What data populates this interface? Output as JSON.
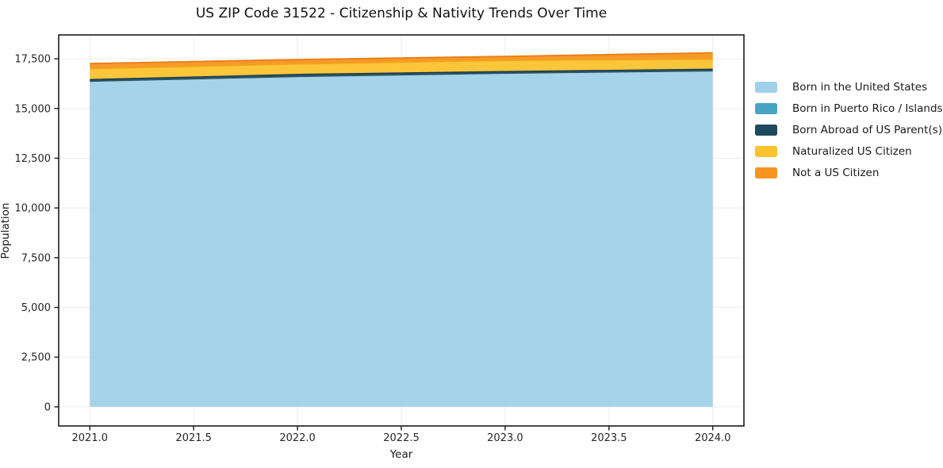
{
  "chart_data": {
    "type": "area",
    "stacked": true,
    "title": "US ZIP Code 31522 - Citizenship & Nativity Trends Over Time",
    "xlabel": "Year",
    "ylabel": "Population",
    "x": [
      2021,
      2022,
      2023,
      2024
    ],
    "series": [
      {
        "name": "Born in the United States",
        "color": "#a0d1e8",
        "edge_color": null,
        "values": [
          16340,
          16580,
          16740,
          16860
        ]
      },
      {
        "name": "Born in Puerto Rico / Islands",
        "color": "#46a5c2",
        "edge_color": null,
        "values": [
          0,
          0,
          0,
          0
        ]
      },
      {
        "name": "Born Abroad of US Parent(s)",
        "color": "#1f4a5e",
        "edge_color": "#16384a",
        "values": [
          120,
          140,
          120,
          120
        ]
      },
      {
        "name": "Naturalized US Citizen",
        "color": "#fcc330",
        "edge_color": "#f2a51a",
        "values": [
          540,
          520,
          560,
          500
        ]
      },
      {
        "name": "Not a US Citizen",
        "color": "#f7941f",
        "edge_color": "#ea7d12",
        "values": [
          260,
          220,
          200,
          320
        ]
      }
    ],
    "xlim": [
      2020.85,
      2024.15
    ],
    "ylim": [
      -960,
      18700
    ],
    "xticks": [
      2021.0,
      2021.5,
      2022.0,
      2022.5,
      2023.0,
      2023.5,
      2024.0
    ],
    "xtick_labels": [
      "2021.0",
      "2021.5",
      "2022.0",
      "2022.5",
      "2023.0",
      "2023.5",
      "2024.0"
    ],
    "yticks": [
      0,
      2500,
      5000,
      7500,
      10000,
      12500,
      15000,
      17500
    ],
    "ytick_labels": [
      "0",
      "2,500",
      "5,000",
      "7,500",
      "10,000",
      "12,500",
      "15,000",
      "17,500"
    ],
    "grid": true,
    "grid_color": "#ececec",
    "spine_color": "#1b1b1b",
    "tick_label_color": "#262626",
    "legend_position": "outside right top",
    "legend_entries": [
      "Born in the United States",
      "Born in Puerto Rico / Islands",
      "Born Abroad of US Parent(s)",
      "Naturalized US Citizen",
      "Not a US Citizen"
    ]
  }
}
